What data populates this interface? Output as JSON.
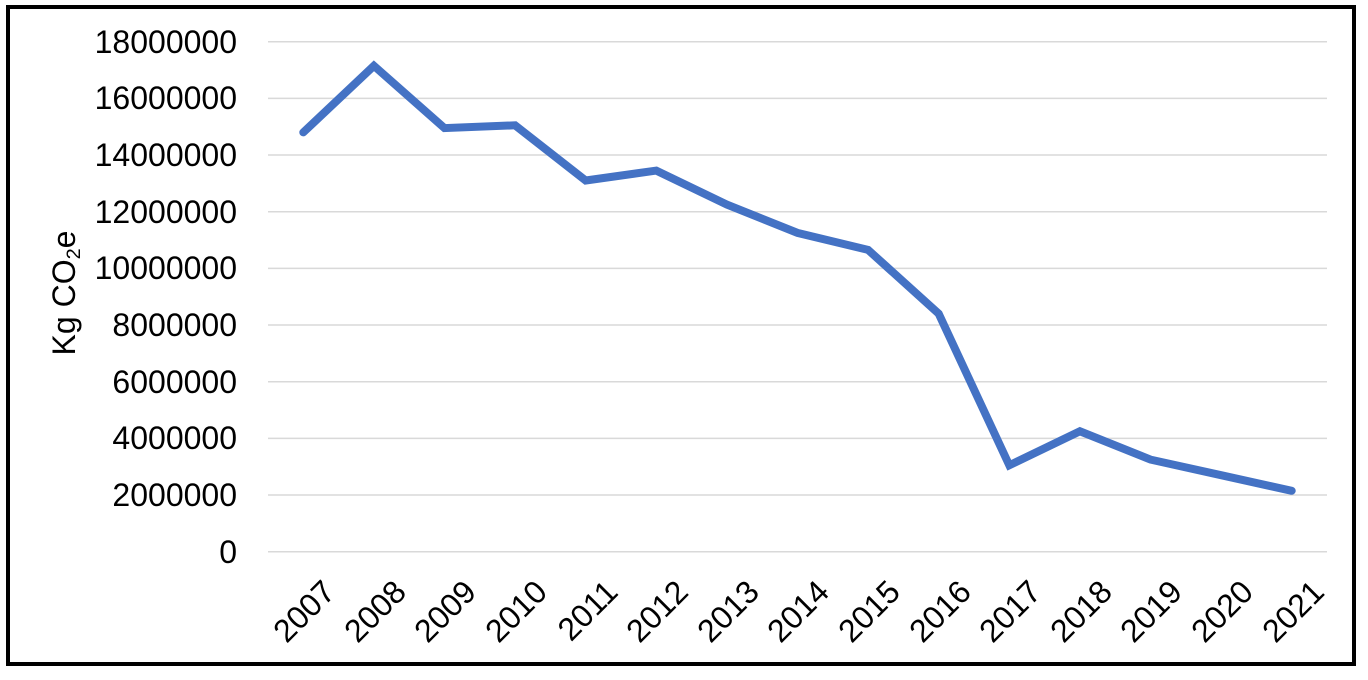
{
  "chart_data": {
    "type": "line",
    "title": "",
    "x": [
      "2007",
      "2008",
      "2009",
      "2010",
      "2011",
      "2012",
      "2013",
      "2014",
      "2015",
      "2016",
      "2017",
      "2018",
      "2019",
      "2020",
      "2021"
    ],
    "series": [
      {
        "values": [
          14800000,
          17150000,
          14950000,
          15050000,
          13100000,
          13450000,
          12250000,
          11250000,
          10650000,
          8400000,
          3050000,
          4250000,
          3250000,
          2700000,
          2150000
        ]
      }
    ],
    "ylabel": "Kg CO2e",
    "ylabel_parts": {
      "prefix": "Kg CO",
      "sub": "2",
      "suffix": "e"
    },
    "xlabel": "",
    "ylim": [
      0,
      18000000
    ],
    "yticks": [
      0,
      2000000,
      4000000,
      6000000,
      8000000,
      10000000,
      12000000,
      14000000,
      16000000,
      18000000
    ],
    "grid": true,
    "legend": "none",
    "colors": {
      "line": "#4472C4",
      "gridline": "#D9D9D9",
      "text": "#000000",
      "border": "#000000",
      "background": "#FFFFFF"
    }
  }
}
